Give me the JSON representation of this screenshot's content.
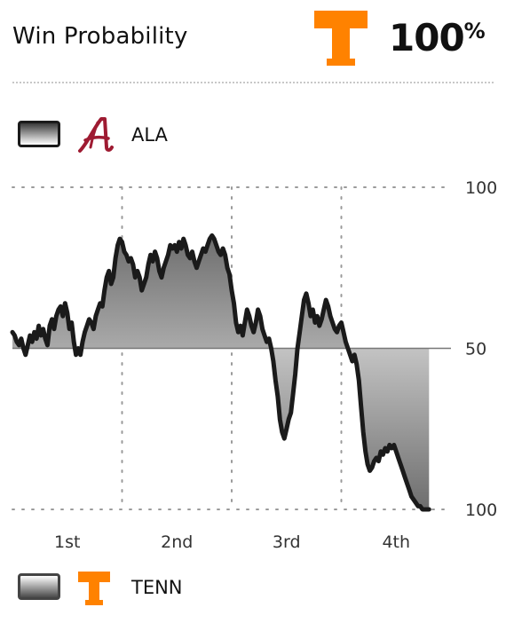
{
  "header": {
    "title": "Win Probability",
    "favorite_team_logo": "tennessee-power-t-logo",
    "favorite_percent": "100",
    "percent_symbol": "%"
  },
  "legend": {
    "home": {
      "abbr": "ALA",
      "logo": "alabama-script-a-logo",
      "color": "#9e1b32"
    },
    "away": {
      "abbr": "TENN",
      "logo": "tennessee-power-t-logo",
      "color": "#ff8200"
    }
  },
  "colors": {
    "line": "#1a1a1a",
    "line_late": "#555555",
    "fill_dark": "#6e6e6e",
    "grid": "#9a9a9a",
    "midline": "#777777"
  },
  "chart_data": {
    "type": "area",
    "ylim": [
      0,
      100
    ],
    "midline": 50,
    "y_tick_labels": [
      {
        "value": 100,
        "label": "100"
      },
      {
        "value": 50,
        "label": "50"
      },
      {
        "value": 0,
        "label": "100"
      }
    ],
    "x_tick_labels": [
      "1st",
      "2nd",
      "3rd",
      "4th"
    ],
    "grid": true,
    "x_unit": "fraction of game",
    "y_unit": "ALA win probability (%)",
    "series": [
      {
        "values": [
          [
            0.0,
            55
          ],
          [
            0.005,
            54
          ],
          [
            0.01,
            52
          ],
          [
            0.015,
            51
          ],
          [
            0.02,
            53
          ],
          [
            0.025,
            50
          ],
          [
            0.03,
            48
          ],
          [
            0.035,
            51
          ],
          [
            0.04,
            54
          ],
          [
            0.045,
            52
          ],
          [
            0.05,
            55
          ],
          [
            0.055,
            53
          ],
          [
            0.06,
            57
          ],
          [
            0.065,
            54
          ],
          [
            0.07,
            56
          ],
          [
            0.075,
            53
          ],
          [
            0.08,
            51
          ],
          [
            0.085,
            57
          ],
          [
            0.09,
            59
          ],
          [
            0.095,
            56
          ],
          [
            0.1,
            60
          ],
          [
            0.105,
            62
          ],
          [
            0.11,
            63
          ],
          [
            0.115,
            60
          ],
          [
            0.12,
            64
          ],
          [
            0.125,
            61
          ],
          [
            0.13,
            56
          ],
          [
            0.135,
            58
          ],
          [
            0.14,
            52
          ],
          [
            0.145,
            48
          ],
          [
            0.15,
            50
          ],
          [
            0.155,
            48
          ],
          [
            0.16,
            52
          ],
          [
            0.165,
            55
          ],
          [
            0.17,
            57
          ],
          [
            0.175,
            59
          ],
          [
            0.18,
            58
          ],
          [
            0.185,
            56
          ],
          [
            0.19,
            60
          ],
          [
            0.195,
            62
          ],
          [
            0.2,
            64
          ],
          [
            0.205,
            63
          ],
          [
            0.21,
            68
          ],
          [
            0.215,
            72
          ],
          [
            0.22,
            74
          ],
          [
            0.225,
            70
          ],
          [
            0.23,
            72
          ],
          [
            0.235,
            78
          ],
          [
            0.24,
            82
          ],
          [
            0.245,
            84
          ],
          [
            0.25,
            83
          ],
          [
            0.255,
            80
          ],
          [
            0.26,
            79
          ],
          [
            0.265,
            77
          ],
          [
            0.27,
            78
          ],
          [
            0.275,
            76
          ],
          [
            0.28,
            72
          ],
          [
            0.285,
            74
          ],
          [
            0.29,
            72
          ],
          [
            0.295,
            68
          ],
          [
            0.3,
            70
          ],
          [
            0.305,
            72
          ],
          [
            0.31,
            76
          ],
          [
            0.315,
            79
          ],
          [
            0.32,
            77
          ],
          [
            0.325,
            80
          ],
          [
            0.33,
            78
          ],
          [
            0.335,
            74
          ],
          [
            0.34,
            72
          ],
          [
            0.345,
            75
          ],
          [
            0.35,
            77
          ],
          [
            0.355,
            79
          ],
          [
            0.36,
            82
          ],
          [
            0.365,
            81
          ],
          [
            0.37,
            82
          ],
          [
            0.375,
            80
          ],
          [
            0.38,
            83
          ],
          [
            0.385,
            81
          ],
          [
            0.39,
            84
          ],
          [
            0.395,
            82
          ],
          [
            0.4,
            79
          ],
          [
            0.405,
            78
          ],
          [
            0.41,
            80
          ],
          [
            0.415,
            77
          ],
          [
            0.42,
            75
          ],
          [
            0.425,
            77
          ],
          [
            0.43,
            79
          ],
          [
            0.435,
            81
          ],
          [
            0.44,
            80
          ],
          [
            0.445,
            82
          ],
          [
            0.45,
            84
          ],
          [
            0.455,
            85
          ],
          [
            0.46,
            84
          ],
          [
            0.465,
            82
          ],
          [
            0.47,
            80
          ],
          [
            0.475,
            79
          ],
          [
            0.48,
            81
          ],
          [
            0.485,
            79
          ],
          [
            0.49,
            75
          ],
          [
            0.495,
            73
          ],
          [
            0.5,
            68
          ],
          [
            0.505,
            64
          ],
          [
            0.51,
            58
          ],
          [
            0.515,
            55
          ],
          [
            0.52,
            57
          ],
          [
            0.525,
            54
          ],
          [
            0.53,
            58
          ],
          [
            0.535,
            62
          ],
          [
            0.54,
            60
          ],
          [
            0.545,
            57
          ],
          [
            0.55,
            55
          ],
          [
            0.555,
            58
          ],
          [
            0.56,
            62
          ],
          [
            0.565,
            60
          ],
          [
            0.57,
            56
          ],
          [
            0.575,
            54
          ],
          [
            0.58,
            52
          ],
          [
            0.585,
            53
          ],
          [
            0.59,
            50
          ],
          [
            0.595,
            46
          ],
          [
            0.6,
            40
          ],
          [
            0.605,
            35
          ],
          [
            0.61,
            28
          ],
          [
            0.615,
            24
          ],
          [
            0.62,
            22
          ],
          [
            0.625,
            25
          ],
          [
            0.63,
            28
          ],
          [
            0.635,
            30
          ],
          [
            0.64,
            36
          ],
          [
            0.645,
            42
          ],
          [
            0.65,
            50
          ],
          [
            0.655,
            55
          ],
          [
            0.66,
            60
          ],
          [
            0.665,
            65
          ],
          [
            0.67,
            67
          ],
          [
            0.675,
            64
          ],
          [
            0.68,
            60
          ],
          [
            0.685,
            62
          ],
          [
            0.69,
            58
          ],
          [
            0.695,
            60
          ],
          [
            0.7,
            57
          ],
          [
            0.705,
            59
          ],
          [
            0.71,
            62
          ],
          [
            0.715,
            65
          ],
          [
            0.72,
            63
          ],
          [
            0.725,
            60
          ],
          [
            0.73,
            58
          ],
          [
            0.735,
            56
          ],
          [
            0.74,
            55
          ],
          [
            0.745,
            57
          ],
          [
            0.75,
            58
          ],
          [
            0.755,
            55
          ],
          [
            0.76,
            52
          ],
          [
            0.765,
            50
          ],
          [
            0.77,
            48
          ],
          [
            0.775,
            46
          ],
          [
            0.78,
            48
          ],
          [
            0.785,
            45
          ],
          [
            0.79,
            40
          ],
          [
            0.795,
            32
          ],
          [
            0.8,
            24
          ],
          [
            0.805,
            18
          ],
          [
            0.81,
            14
          ],
          [
            0.815,
            12
          ],
          [
            0.82,
            13
          ],
          [
            0.825,
            15
          ],
          [
            0.83,
            16
          ],
          [
            0.835,
            15
          ],
          [
            0.84,
            18
          ],
          [
            0.845,
            17
          ],
          [
            0.85,
            19
          ],
          [
            0.855,
            18
          ],
          [
            0.86,
            20
          ],
          [
            0.865,
            19
          ],
          [
            0.87,
            20
          ],
          [
            0.875,
            18
          ],
          [
            0.88,
            16
          ],
          [
            0.885,
            14
          ],
          [
            0.89,
            12
          ],
          [
            0.895,
            10
          ],
          [
            0.9,
            8
          ],
          [
            0.905,
            6
          ],
          [
            0.91,
            4
          ],
          [
            0.915,
            3
          ],
          [
            0.92,
            2
          ],
          [
            0.925,
            1
          ],
          [
            0.93,
            1
          ],
          [
            0.935,
            0
          ],
          [
            0.94,
            0
          ],
          [
            0.945,
            0
          ],
          [
            0.95,
            0
          ]
        ]
      }
    ]
  }
}
